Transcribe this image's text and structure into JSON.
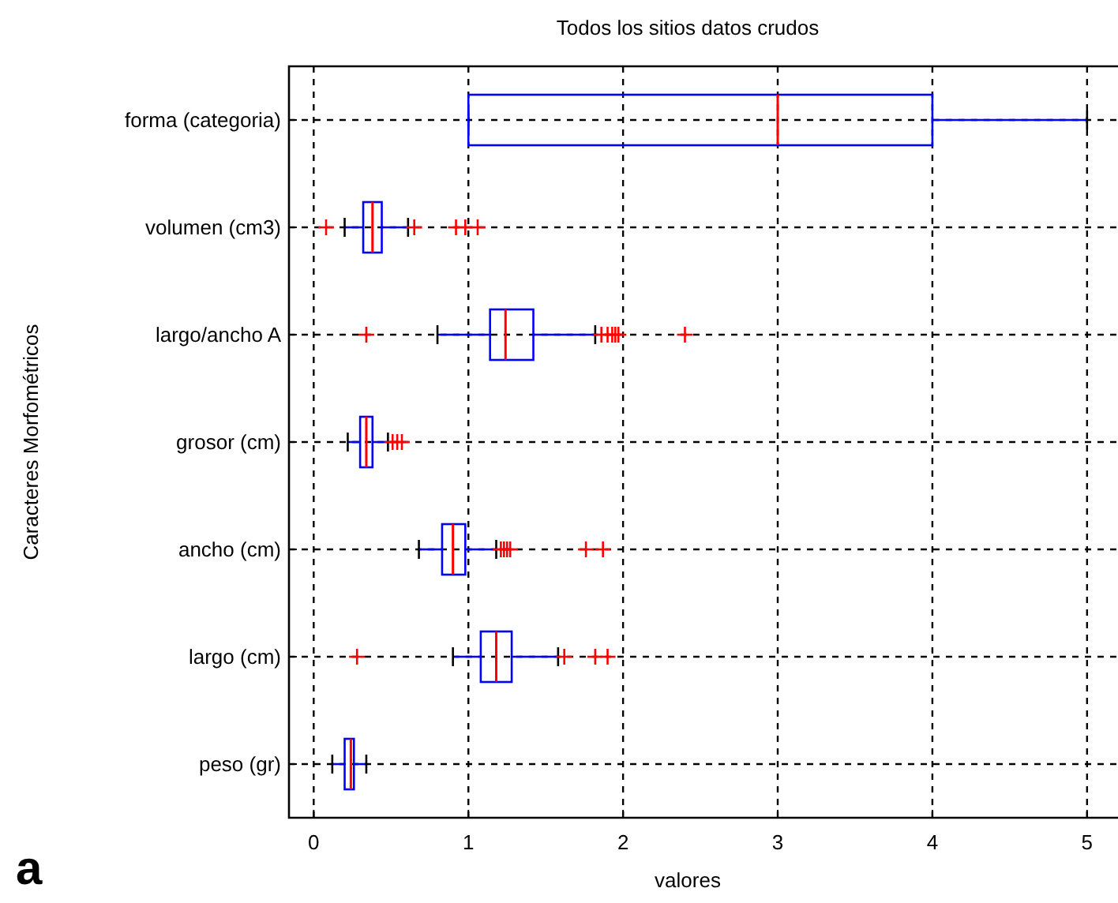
{
  "chart_data": {
    "type": "box",
    "orientation": "horizontal",
    "title": "Todos los sitios datos crudos",
    "xlabel": "valores",
    "ylabel": "Caracteres Morfométricos",
    "annotations": [
      "a"
    ],
    "categories": [
      "forma (categoria)",
      "volumen (cm3)",
      "largo/ancho A",
      "grosor (cm)",
      "ancho (cm)",
      "largo (cm)",
      "peso (gr)"
    ],
    "color": "#0000ff",
    "grid": true,
    "marker": "cross",
    "xlim": [
      -0.16,
      5.2
    ],
    "xticks": [
      0,
      1,
      2,
      3,
      4,
      5
    ],
    "boxes": [
      {
        "low": 1,
        "q1": 1,
        "median": 3,
        "q3": 4,
        "high": 5
      },
      {
        "low": 0.2,
        "q1": 0.32,
        "median": 0.38,
        "q3": 0.44,
        "high": 0.61,
        "outliers": [
          0.08,
          0.65,
          0.92,
          0.98,
          1.06
        ]
      },
      {
        "low": 0.8,
        "q1": 1.14,
        "median": 1.24,
        "q3": 1.42,
        "high": 1.82,
        "outliers": [
          0.34,
          1.86,
          1.9,
          1.93,
          1.95,
          1.97,
          2.4
        ]
      },
      {
        "low": 0.22,
        "q1": 0.3,
        "median": 0.34,
        "q3": 0.38,
        "high": 0.48,
        "outliers": [
          0.51,
          0.54,
          0.57
        ]
      },
      {
        "low": 0.68,
        "q1": 0.83,
        "median": 0.9,
        "q3": 0.98,
        "high": 1.18,
        "outliers": [
          1.21,
          1.23,
          1.25,
          1.27,
          1.76,
          1.87
        ]
      },
      {
        "low": 0.9,
        "q1": 1.08,
        "median": 1.18,
        "q3": 1.28,
        "high": 1.58,
        "outliers": [
          0.28,
          1.62,
          1.82,
          1.9
        ]
      },
      {
        "low": 0.12,
        "q1": 0.2,
        "median": 0.24,
        "q3": 0.26,
        "high": 0.34
      }
    ]
  }
}
